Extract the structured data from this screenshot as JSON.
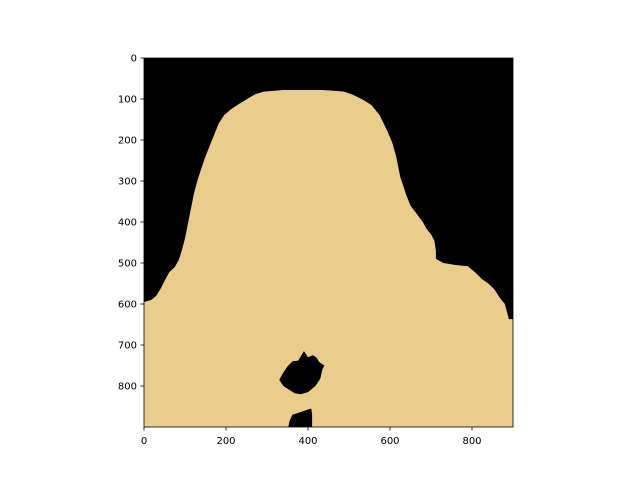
{
  "chart_data": {
    "type": "heatmap",
    "title": "",
    "xlabel": "",
    "ylabel": "",
    "xlim": [
      0,
      900
    ],
    "ylim": [
      900,
      0
    ],
    "x_ticks": [
      0,
      200,
      400,
      600,
      800
    ],
    "y_ticks": [
      0,
      100,
      200,
      300,
      400,
      500,
      600,
      700,
      800
    ],
    "grid": false,
    "colors": {
      "background": "#000000",
      "mask": "#EBCD8B",
      "axes": "#000000"
    },
    "regions": [
      {
        "name": "mask-region",
        "color": "#EBCD8B",
        "points": [
          [
            0,
            595
          ],
          [
            18,
            590
          ],
          [
            30,
            580
          ],
          [
            42,
            560
          ],
          [
            52,
            540
          ],
          [
            62,
            522
          ],
          [
            75,
            510
          ],
          [
            85,
            492
          ],
          [
            92,
            470
          ],
          [
            100,
            440
          ],
          [
            108,
            400
          ],
          [
            115,
            365
          ],
          [
            122,
            330
          ],
          [
            130,
            300
          ],
          [
            138,
            275
          ],
          [
            148,
            245
          ],
          [
            160,
            215
          ],
          [
            172,
            185
          ],
          [
            182,
            160
          ],
          [
            195,
            140
          ],
          [
            212,
            125
          ],
          [
            232,
            112
          ],
          [
            255,
            98
          ],
          [
            272,
            88
          ],
          [
            292,
            82
          ],
          [
            340,
            78
          ],
          [
            375,
            78
          ],
          [
            405,
            78
          ],
          [
            435,
            78
          ],
          [
            462,
            80
          ],
          [
            488,
            82
          ],
          [
            510,
            90
          ],
          [
            535,
            102
          ],
          [
            555,
            115
          ],
          [
            575,
            140
          ],
          [
            592,
            175
          ],
          [
            605,
            205
          ],
          [
            615,
            240
          ],
          [
            625,
            290
          ],
          [
            640,
            335
          ],
          [
            650,
            360
          ],
          [
            665,
            380
          ],
          [
            680,
            400
          ],
          [
            690,
            418
          ],
          [
            700,
            430
          ],
          [
            708,
            445
          ],
          [
            712,
            470
          ],
          [
            712,
            490
          ],
          [
            730,
            500
          ],
          [
            760,
            505
          ],
          [
            790,
            508
          ],
          [
            810,
            525
          ],
          [
            825,
            540
          ],
          [
            840,
            550
          ],
          [
            855,
            565
          ],
          [
            868,
            585
          ],
          [
            880,
            600
          ],
          [
            890,
            637
          ],
          [
            900,
            637
          ],
          [
            900,
            900
          ],
          [
            0,
            900
          ]
        ]
      },
      {
        "name": "hole-center",
        "color": "#000000",
        "points": [
          [
            390,
            715
          ],
          [
            400,
            730
          ],
          [
            412,
            725
          ],
          [
            420,
            730
          ],
          [
            428,
            742
          ],
          [
            440,
            750
          ],
          [
            435,
            760
          ],
          [
            430,
            782
          ],
          [
            418,
            800
          ],
          [
            400,
            815
          ],
          [
            382,
            820
          ],
          [
            368,
            818
          ],
          [
            352,
            808
          ],
          [
            340,
            800
          ],
          [
            330,
            785
          ],
          [
            338,
            770
          ],
          [
            350,
            752
          ],
          [
            362,
            740
          ],
          [
            376,
            738
          ]
        ]
      },
      {
        "name": "hole-bottom",
        "color": "#000000",
        "points": [
          [
            352,
            900
          ],
          [
            355,
            885
          ],
          [
            362,
            870
          ],
          [
            378,
            865
          ],
          [
            392,
            860
          ],
          [
            408,
            855
          ],
          [
            410,
            870
          ],
          [
            410,
            900
          ]
        ]
      }
    ]
  }
}
